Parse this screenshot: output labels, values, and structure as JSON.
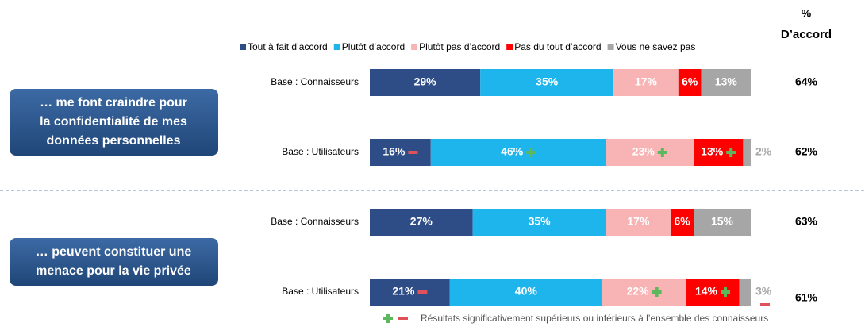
{
  "chart_data": {
    "type": "bar",
    "orientation": "horizontal",
    "stacked": true,
    "xlim": [
      0,
      100
    ],
    "categories": [
      "Base : Connaisseurs",
      "Base : Utilisateurs",
      "Base : Connaisseurs",
      "Base : Utilisateurs"
    ],
    "groups": [
      {
        "label": [
          "… me font craindre pour",
          "la confidentialité de mes",
          "données personnelles"
        ]
      },
      {
        "label": [
          "… peuvent constituer une",
          "menace pour la vie privée"
        ]
      }
    ],
    "series": [
      {
        "name": "Tout à fait d’accord",
        "color": "#2e4d87",
        "values": [
          29,
          16,
          27,
          21
        ],
        "value_labels": [
          "29%",
          "16%",
          "27%",
          "21%"
        ],
        "markers": [
          null,
          "-",
          null,
          "-"
        ]
      },
      {
        "name": "Plutôt d’accord",
        "color": "#1eb4ec",
        "values": [
          35,
          46,
          35,
          40
        ],
        "value_labels": [
          "35%",
          "46%",
          "35%",
          "40%"
        ],
        "markers": [
          null,
          "+",
          null,
          null
        ]
      },
      {
        "name": "Plutôt pas d’accord",
        "color": "#f8b4b4",
        "values": [
          17,
          23,
          17,
          22
        ],
        "value_labels": [
          "17%",
          "23%",
          "17%",
          "22%"
        ],
        "markers": [
          null,
          "+",
          null,
          "+"
        ]
      },
      {
        "name": "Pas du tout d’accord",
        "color": "#ff0000",
        "values": [
          6,
          13,
          6,
          14
        ],
        "value_labels": [
          "6%",
          "13%",
          "6%",
          "14%"
        ],
        "markers": [
          null,
          "+",
          null,
          "+"
        ]
      },
      {
        "name": "Vous ne savez pas",
        "color": "#a6a6a6",
        "values": [
          13,
          2,
          15,
          3
        ],
        "value_labels": [
          "13%",
          "2%",
          "15%",
          "3%"
        ],
        "markers": [
          null,
          null,
          null,
          "-"
        ]
      }
    ],
    "agree_title": [
      "%",
      "D’accord"
    ],
    "agree": {
      "values": [
        64,
        62,
        63,
        61
      ],
      "value_labels": [
        "64%",
        "62%",
        "63%",
        "61%"
      ]
    },
    "footnote": "Résultats significativement supérieurs ou inférieurs à l’ensemble des connaisseurs",
    "plus_color": "#5cb85c",
    "minus_color": "#e0525a"
  }
}
